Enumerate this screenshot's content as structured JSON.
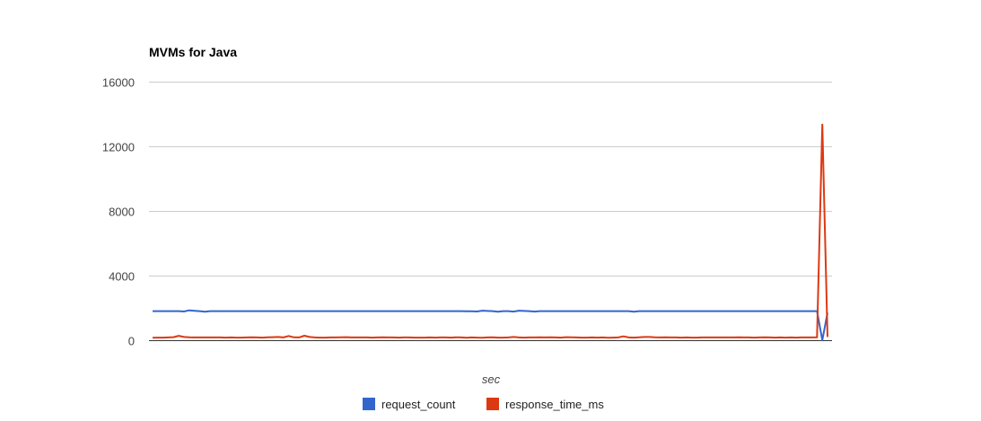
{
  "chart_data": {
    "type": "line",
    "title": "MVMs for Java",
    "xlabel": "sec",
    "ylabel": "",
    "ylim": [
      0,
      16000
    ],
    "yticks": [
      0,
      4000,
      8000,
      12000,
      16000
    ],
    "grid": true,
    "legend": "bottom",
    "x": [
      1,
      2,
      3,
      4,
      5,
      6,
      7,
      8,
      9,
      10,
      11,
      12,
      13,
      14,
      15,
      16,
      17,
      18,
      19,
      20,
      21,
      22,
      23,
      24,
      25,
      26,
      27,
      28,
      29,
      30,
      31,
      32,
      33,
      34,
      35,
      36,
      37,
      38,
      39,
      40,
      41,
      42,
      43,
      44,
      45,
      46,
      47,
      48,
      49,
      50,
      51,
      52,
      53,
      54,
      55,
      56,
      57,
      58,
      59,
      60,
      61,
      62,
      63,
      64,
      65,
      66,
      67,
      68,
      69,
      70,
      71,
      72,
      73,
      74,
      75,
      76,
      77,
      78,
      79,
      80,
      81,
      82,
      83,
      84,
      85,
      86,
      87,
      88,
      89,
      90,
      91,
      92,
      93,
      94,
      95,
      96,
      97,
      98,
      99,
      100,
      101,
      102,
      103,
      104,
      105,
      106,
      107,
      108,
      109,
      110,
      111,
      112,
      113,
      114,
      115,
      116,
      117,
      118,
      119,
      120,
      121,
      122,
      123,
      124,
      125,
      126,
      127,
      128,
      129,
      130
    ],
    "series": [
      {
        "name": "request_count",
        "color": "#3366cc",
        "values": [
          1800,
          1800,
          1800,
          1800,
          1800,
          1800,
          1780,
          1850,
          1820,
          1800,
          1760,
          1800,
          1800,
          1800,
          1800,
          1800,
          1800,
          1800,
          1800,
          1800,
          1800,
          1800,
          1800,
          1800,
          1800,
          1800,
          1800,
          1800,
          1800,
          1800,
          1800,
          1800,
          1800,
          1800,
          1800,
          1800,
          1800,
          1800,
          1800,
          1800,
          1800,
          1800,
          1800,
          1800,
          1800,
          1800,
          1800,
          1800,
          1800,
          1800,
          1800,
          1800,
          1800,
          1800,
          1800,
          1800,
          1800,
          1800,
          1800,
          1800,
          1790,
          1790,
          1780,
          1830,
          1810,
          1800,
          1760,
          1800,
          1800,
          1770,
          1830,
          1810,
          1800,
          1770,
          1800,
          1800,
          1800,
          1800,
          1800,
          1800,
          1800,
          1800,
          1800,
          1800,
          1800,
          1800,
          1800,
          1800,
          1800,
          1800,
          1800,
          1800,
          1760,
          1800,
          1800,
          1800,
          1800,
          1800,
          1800,
          1800,
          1800,
          1800,
          1800,
          1800,
          1800,
          1800,
          1800,
          1800,
          1800,
          1800,
          1800,
          1800,
          1800,
          1800,
          1800,
          1800,
          1800,
          1800,
          1800,
          1800,
          1800,
          1800,
          1800,
          1800,
          1800,
          1800,
          1800,
          1800,
          0,
          1700
        ]
      },
      {
        "name": "response_time_ms",
        "color": "#dc3912",
        "values": [
          150,
          160,
          160,
          170,
          190,
          270,
          200,
          180,
          170,
          170,
          170,
          170,
          170,
          170,
          160,
          170,
          160,
          160,
          170,
          180,
          170,
          160,
          180,
          190,
          200,
          170,
          260,
          180,
          170,
          280,
          200,
          170,
          160,
          160,
          170,
          170,
          180,
          190,
          170,
          170,
          170,
          170,
          160,
          170,
          180,
          170,
          170,
          160,
          170,
          170,
          160,
          160,
          160,
          170,
          160,
          170,
          170,
          160,
          180,
          170,
          150,
          170,
          160,
          150,
          170,
          180,
          160,
          160,
          170,
          200,
          170,
          160,
          170,
          170,
          180,
          170,
          180,
          170,
          160,
          190,
          180,
          170,
          160,
          160,
          170,
          160,
          170,
          150,
          160,
          170,
          240,
          170,
          160,
          180,
          200,
          200,
          180,
          170,
          180,
          170,
          170,
          160,
          170,
          160,
          160,
          170,
          170,
          170,
          170,
          170,
          170,
          170,
          180,
          170,
          170,
          160,
          170,
          180,
          170,
          160,
          170,
          160,
          170,
          160,
          170,
          170,
          170,
          180,
          13350,
          200
        ]
      }
    ]
  }
}
